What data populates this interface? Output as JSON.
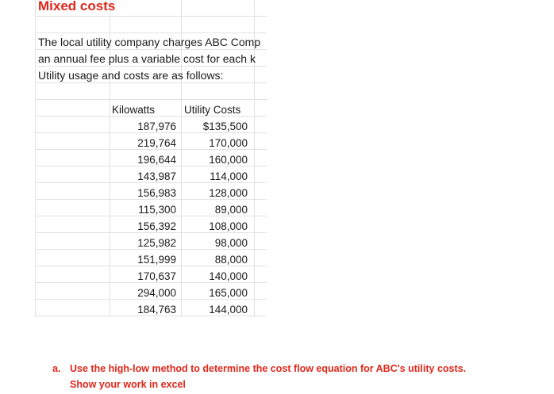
{
  "sheet": {
    "title": "Mixed costs",
    "description": [
      "The local utility company charges ABC Comp",
      "an annual fee plus a variable cost for each k",
      "Utility usage and costs are as follows:"
    ],
    "table": {
      "headers": [
        "Kilowatts",
        "Utility Costs"
      ],
      "rows": [
        {
          "kilowatts": "187,976",
          "cost": "$135,500"
        },
        {
          "kilowatts": "219,764",
          "cost": "170,000"
        },
        {
          "kilowatts": "196,644",
          "cost": "160,000"
        },
        {
          "kilowatts": "143,987",
          "cost": "114,000"
        },
        {
          "kilowatts": "156,983",
          "cost": "128,000"
        },
        {
          "kilowatts": "115,300",
          "cost": "89,000"
        },
        {
          "kilowatts": "156,392",
          "cost": "108,000"
        },
        {
          "kilowatts": "125,982",
          "cost": "98,000"
        },
        {
          "kilowatts": "151,999",
          "cost": "88,000"
        },
        {
          "kilowatts": "170,637",
          "cost": "140,000"
        },
        {
          "kilowatts": "294,000",
          "cost": "165,000"
        },
        {
          "kilowatts": "184,763",
          "cost": "144,000"
        }
      ]
    }
  },
  "question": {
    "marker": "a.",
    "line1": "Use the high-low method to determine the cost flow equation for ABC's utility costs.",
    "line2": "Show your work in excel"
  },
  "colors": {
    "accent_red": "#e0271a",
    "text": "#1a1a1a",
    "gridline": "#e2e2e2"
  }
}
